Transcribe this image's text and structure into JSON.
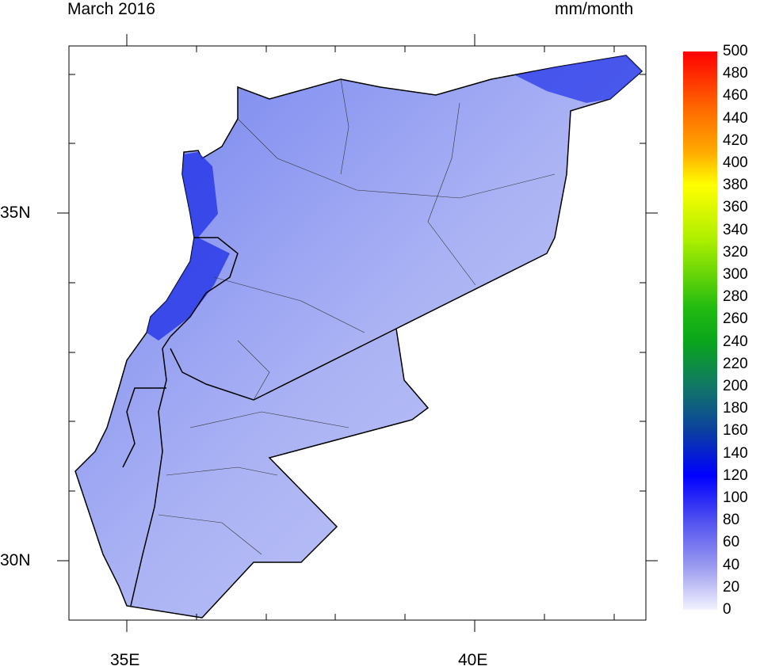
{
  "header": {
    "title": "March 2016",
    "units": "mm/month"
  },
  "axes": {
    "x_ticks": [
      {
        "label": "35E",
        "value": 35
      },
      {
        "label": "40E",
        "value": 40
      }
    ],
    "y_ticks": [
      {
        "label": "35N",
        "value": 35
      },
      {
        "label": "30N",
        "value": 30
      }
    ],
    "lon_range": [
      34.17,
      42.46
    ],
    "lat_range": [
      29.15,
      37.4
    ]
  },
  "colorbar": {
    "labels": [
      "500",
      "480",
      "460",
      "440",
      "420",
      "400",
      "380",
      "360",
      "340",
      "320",
      "300",
      "280",
      "260",
      "240",
      "220",
      "200",
      "180",
      "160",
      "140",
      "120",
      "100",
      "80",
      "60",
      "40",
      "20",
      "0"
    ],
    "colors": [
      "#ff0000",
      "#ff6600",
      "#ffaa00",
      "#ffff00",
      "#aaee00",
      "#22bb11",
      "#0aa51c",
      "#117766",
      "#0b3fa0",
      "#0000ff",
      "#5050f0",
      "#9898f0",
      "#f2f2ff"
    ]
  },
  "map": {
    "fill_color": "#8a95ee",
    "max_color": "#1020e0"
  }
}
